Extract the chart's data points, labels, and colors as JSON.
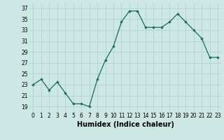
{
  "x": [
    0,
    1,
    2,
    3,
    4,
    5,
    6,
    7,
    8,
    9,
    10,
    11,
    12,
    13,
    14,
    15,
    16,
    17,
    18,
    19,
    20,
    21,
    22,
    23
  ],
  "y": [
    23,
    24,
    22,
    23.5,
    21.5,
    19.5,
    19.5,
    19,
    24,
    27.5,
    30,
    34.5,
    36.5,
    36.5,
    33.5,
    33.5,
    33.5,
    34.5,
    36,
    34.5,
    33,
    31.5,
    28,
    28
  ],
  "line_color": "#1a6b5a",
  "marker": "D",
  "marker_size": 1.8,
  "bg_color": "#cde8e4",
  "grid_color": "#b0d4cf",
  "xlabel": "Humidex (Indice chaleur)",
  "xlabel_fontsize": 7,
  "xlabel_weight": "bold",
  "yticks": [
    19,
    21,
    23,
    25,
    27,
    29,
    31,
    33,
    35,
    37
  ],
  "xticks": [
    0,
    1,
    2,
    3,
    4,
    5,
    6,
    7,
    8,
    9,
    10,
    11,
    12,
    13,
    14,
    15,
    16,
    17,
    18,
    19,
    20,
    21,
    22,
    23
  ],
  "ylim": [
    18.0,
    38.0
  ],
  "xlim": [
    -0.5,
    23.5
  ],
  "tick_fontsize": 5.5,
  "linewidth": 0.9
}
